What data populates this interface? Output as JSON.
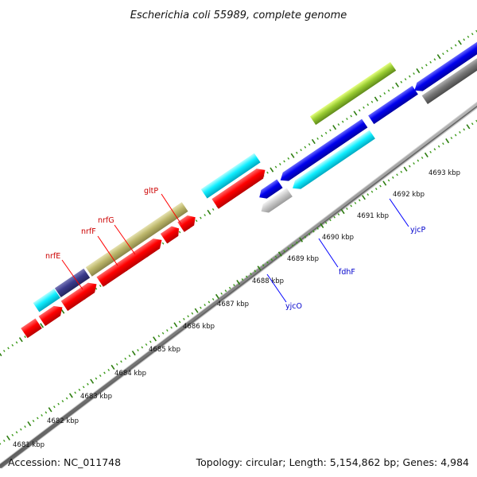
{
  "title": "Escherichia coli 55989, complete genome",
  "accession": "Accession: NC_011748",
  "summary": "Topology: circular; Length: 5,154,862 bp; Genes: 4,984",
  "colors": {
    "background": "#ffffff",
    "backbone": "#888888",
    "tick_major": "#2e7d10",
    "tick_minor": "#3c9a1a",
    "forward_label": "#cc0000",
    "reverse_label": "#0000cc",
    "red": "#ff0000",
    "cyan": "#00f0ff",
    "blue": "#0000ee",
    "olive": "#bdb76b",
    "navy": "#3a3a8c",
    "gray": "#777777",
    "lightgray": "#c8c8c8",
    "yellowgreen": "#9acd32"
  },
  "scale_labels": [
    {
      "label": "4681 kbp"
    },
    {
      "label": "4682 kbp"
    },
    {
      "label": "4683 kbp"
    },
    {
      "label": "4684 kbp"
    },
    {
      "label": "4685 kbp"
    },
    {
      "label": "4686 kbp"
    },
    {
      "label": "4687 kbp"
    },
    {
      "label": "4688 kbp"
    },
    {
      "label": "4689 kbp"
    },
    {
      "label": "4690 kbp"
    },
    {
      "label": "4691 kbp"
    },
    {
      "label": "4692 kbp"
    },
    {
      "label": "4693 kbp"
    }
  ],
  "gene_labels": [
    {
      "label": "gltP",
      "strand": "forward"
    },
    {
      "label": "nrfG",
      "strand": "forward"
    },
    {
      "label": "nrfF",
      "strand": "forward"
    },
    {
      "label": "nrfE",
      "strand": "forward"
    },
    {
      "label": "yjcP",
      "strand": "reverse"
    },
    {
      "label": "fdhF",
      "strand": "reverse"
    },
    {
      "label": "yjcO",
      "strand": "reverse"
    }
  ]
}
